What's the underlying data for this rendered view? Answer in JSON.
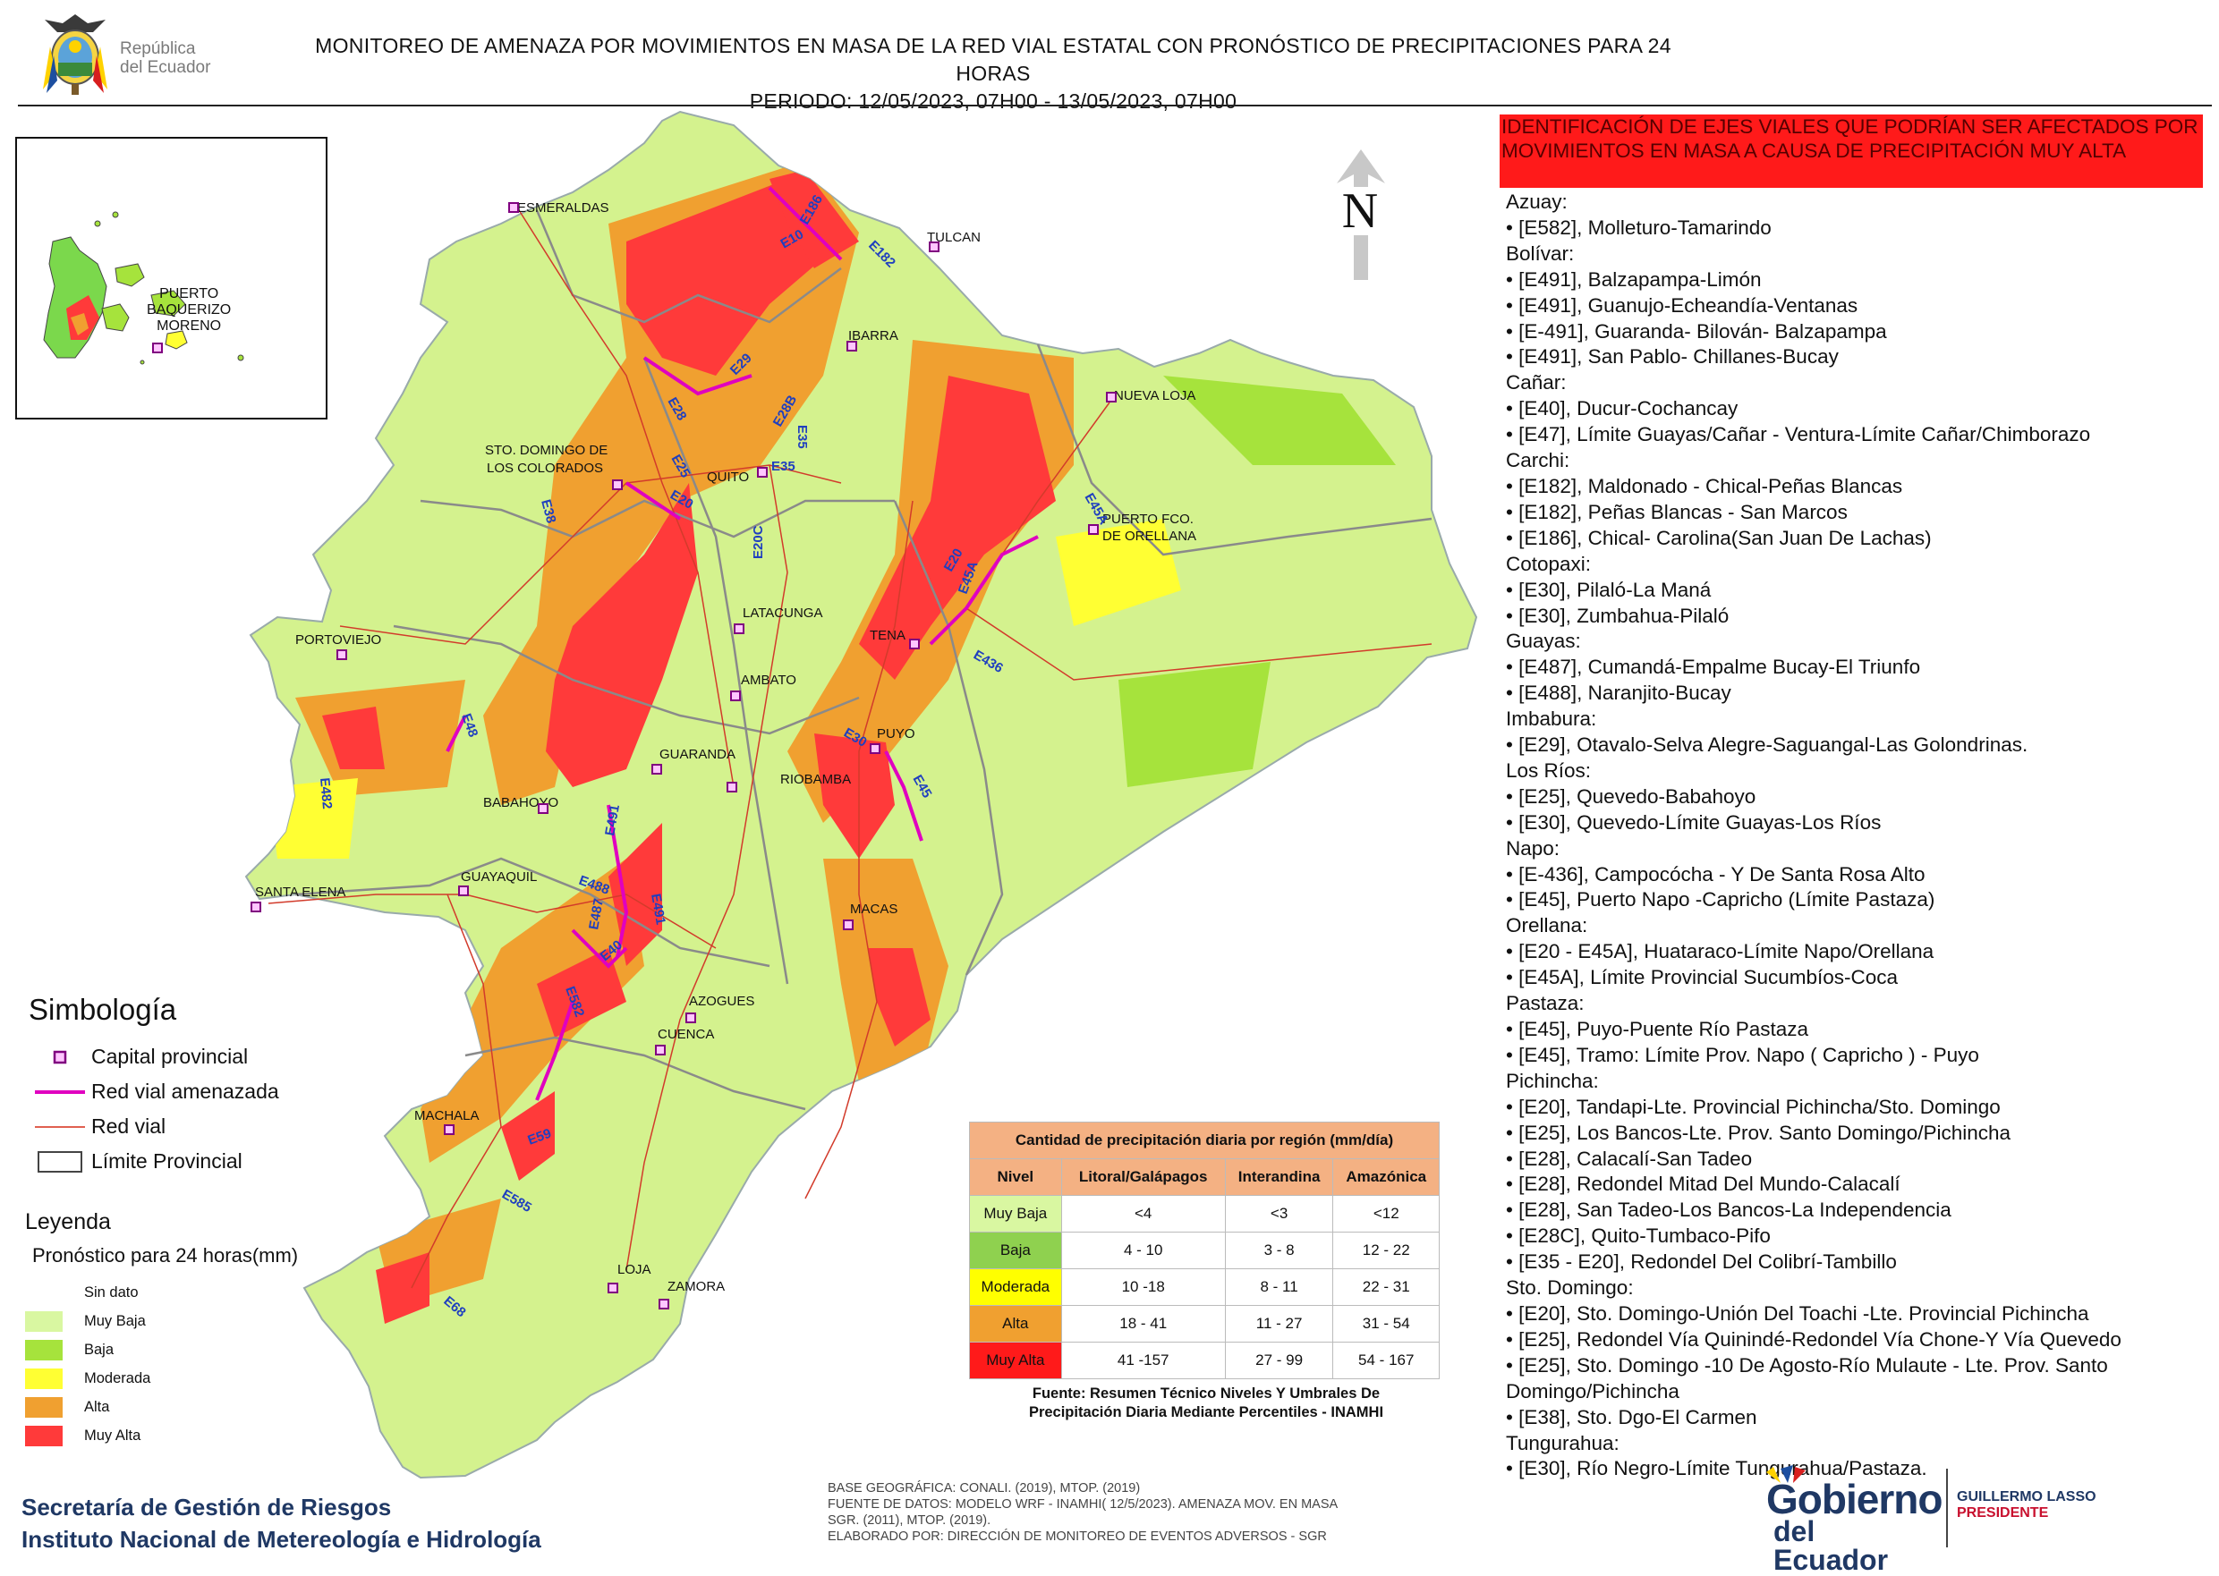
{
  "header": {
    "title_line1": "MONITOREO DE AMENAZA POR MOVIMIENTOS EN MASA DE LA RED VIAL  ESTATAL  CON PRONÓSTICO  DE  PRECIPITACIONES PARA 24 HORAS",
    "title_line2": "PERIODO: 12/05/2023, 07H00 - 13/05/2023, 07H00",
    "logo_text_line1": "República",
    "logo_text_line2": "del Ecuador"
  },
  "north_label": "N",
  "inset": {
    "label_line1": "PUERTO",
    "label_line2": "BAQUERIZO",
    "label_line3": "MORENO"
  },
  "cities": [
    {
      "name": "ESMERALDAS"
    },
    {
      "name": "TULCAN"
    },
    {
      "name": "IBARRA"
    },
    {
      "name": "NUEVA LOJA"
    },
    {
      "name": "STO. DOMINGO DE"
    },
    {
      "name": "LOS COLORADOS"
    },
    {
      "name": "QUITO"
    },
    {
      "name": "PUERTO FCO."
    },
    {
      "name": "DE ORELLANA"
    },
    {
      "name": "PORTOVIEJO"
    },
    {
      "name": "LATACUNGA"
    },
    {
      "name": "TENA"
    },
    {
      "name": "AMBATO"
    },
    {
      "name": "PUYO"
    },
    {
      "name": "GUARANDA"
    },
    {
      "name": "RIOBAMBA"
    },
    {
      "name": "BABAHOYO"
    },
    {
      "name": "SANTA ELENA"
    },
    {
      "name": "GUAYAQUIL"
    },
    {
      "name": "MACAS"
    },
    {
      "name": "AZOGUES"
    },
    {
      "name": "CUENCA"
    },
    {
      "name": "MACHALA"
    },
    {
      "name": "LOJA"
    },
    {
      "name": "ZAMORA"
    }
  ],
  "road_labels": [
    "E10",
    "E186",
    "E182",
    "E29",
    "E28",
    "E35",
    "E28B",
    "E25",
    "E20",
    "E35",
    "E38",
    "E20C",
    "E45A",
    "E20",
    "E45A",
    "E436",
    "E48",
    "E482",
    "E30",
    "E45",
    "E491",
    "E488",
    "E491",
    "E487",
    "E40",
    "E582",
    "E59",
    "E585",
    "E68"
  ],
  "identification": {
    "title": "IDENTIFICACIÓN DE EJES VIALES QUE PODRÍAN SER AFECTADOS POR MOVIMIENTOS EN MASA A CAUSA DE PRECIPITACIÓN MUY ALTA",
    "groups": [
      {
        "province": "Azuay:",
        "roads": [
          "• [E582], Molleturo-Tamarindo"
        ]
      },
      {
        "province": "Bolívar:",
        "roads": [
          "• [E491], Balzapampa-Limón",
          "• [E491], Guanujo-Echeandía-Ventanas",
          "• [E-491], Guaranda- Bilován- Balzapampa",
          "• [E491], San Pablo- Chillanes-Bucay"
        ]
      },
      {
        "province": "Cañar:",
        "roads": [
          "• [E40], Ducur-Cochancay",
          "• [E47], Límite Guayas/Cañar - Ventura-Límite Cañar/Chimborazo"
        ]
      },
      {
        "province": "Carchi:",
        "roads": [
          "• [E182], Maldonado - Chical-Peñas Blancas",
          "• [E182], Peñas Blancas - San Marcos",
          "• [E186], Chical- Carolina(San Juan De Lachas)"
        ]
      },
      {
        "province": "Cotopaxi:",
        "roads": [
          "• [E30], Pilaló-La Maná",
          "• [E30], Zumbahua-Pilaló"
        ]
      },
      {
        "province": "Guayas:",
        "roads": [
          "• [E487], Cumandá-Empalme Bucay-El Triunfo",
          "• [E488], Naranjito-Bucay"
        ]
      },
      {
        "province": "Imbabura:",
        "roads": [
          "• [E29], Otavalo-Selva Alegre-Saguangal-Las Golondrinas."
        ]
      },
      {
        "province": "Los Ríos:",
        "roads": [
          "• [E25], Quevedo-Babahoyo",
          "• [E30], Quevedo-Límite Guayas-Los Ríos"
        ]
      },
      {
        "province": "Napo:",
        "roads": [
          "• [E-436], Campocócha - Y De Santa Rosa Alto",
          "• [E45], Puerto Napo -Capricho (Límite Pastaza)"
        ]
      },
      {
        "province": "Orellana:",
        "roads": [
          "• [E20 - E45A], Huataraco-Límite Napo/Orellana",
          "• [E45A], Límite Provincial Sucumbíos-Coca"
        ]
      },
      {
        "province": "Pastaza:",
        "roads": [
          "• [E45], Puyo-Puente Río Pastaza",
          "• [E45], Tramo: Límite Prov. Napo ( Capricho ) - Puyo"
        ]
      },
      {
        "province": "Pichincha:",
        "roads": [
          "• [E20], Tandapi-Lte. Provincial Pichincha/Sto. Domingo",
          "• [E25], Los Bancos-Lte. Prov. Santo Domingo/Pichincha",
          "• [E28], Calacalí-San Tadeo",
          "• [E28], Redondel Mitad Del Mundo-Calacalí",
          "• [E28], San Tadeo-Los Bancos-La Independencia",
          "• [E28C], Quito-Tumbaco-Pifo",
          "• [E35 - E20], Redondel Del Colibrí-Tambillo"
        ]
      },
      {
        "province": "Sto. Domingo:",
        "roads": [
          "• [E20], Sto. Domingo-Unión Del Toachi -Lte. Provincial Pichincha",
          "• [E25], Redondel Vía Quinindé-Redondel Vía Chone-Y Vía Quevedo",
          "• [E25], Sto. Domingo -10 De Agosto-Río Mulaute - Lte. Prov. Santo\nDomingo/Pichincha",
          "• [E38], Sto. Dgo-El Carmen"
        ]
      },
      {
        "province": "Tungurahua:",
        "roads": [
          "• [E30], Río Negro-Límite Tungurahua/Pastaza."
        ]
      }
    ]
  },
  "simbologia": {
    "title": "Simbología",
    "items": [
      {
        "label": "Capital provincial"
      },
      {
        "label": "Red vial amenazada"
      },
      {
        "label": "Red vial"
      },
      {
        "label": "Límite Provincial"
      }
    ]
  },
  "leyenda": {
    "title": "Leyenda",
    "subtitle": "Pronóstico para 24 horas(mm)",
    "items": [
      {
        "label": "Sin dato",
        "color": "#ffffff"
      },
      {
        "label": "Muy Baja",
        "color": "#d9f7a1"
      },
      {
        "label": "Baja",
        "color": "#a6e33c"
      },
      {
        "label": "Moderada",
        "color": "#ffff33"
      },
      {
        "label": "Alta",
        "color": "#f0a030"
      },
      {
        "label": "Muy Alta",
        "color": "#ff3a3a"
      }
    ]
  },
  "precip_table": {
    "title": "Cantidad de precipitación diaria por región (mm/día)",
    "headers": [
      "Nivel",
      "Litoral/Galápagos",
      "Interandina",
      "Amazónica"
    ],
    "rows": [
      {
        "nivel": "Muy Baja",
        "color": "#d9f7a1",
        "litoral": "<4",
        "interandina": "<3",
        "amazonica": "<12"
      },
      {
        "nivel": "Baja",
        "color": "#8fd14f",
        "litoral": "4 - 10",
        "interandina": "3 - 8",
        "amazonica": "12 - 22"
      },
      {
        "nivel": "Moderada",
        "color": "#ffff00",
        "litoral": "10 -18",
        "interandina": "8 - 11",
        "amazonica": "22 - 31"
      },
      {
        "nivel": "Alta",
        "color": "#f0a030",
        "litoral": "18 - 41",
        "interandina": "11 - 27",
        "amazonica": "31 - 54"
      },
      {
        "nivel": "Muy Alta",
        "color": "#ff1a1a",
        "litoral": "41 -157",
        "interandina": "27 - 99",
        "amazonica": "54 - 167"
      }
    ],
    "caption_line1": "Fuente: Resumen Técnico Niveles Y Umbrales De",
    "caption_line2": "Precipitación Diaria Mediante Percentiles - INAMHI"
  },
  "footer": {
    "sgr_line1": "Secretaría de Gestión de Riesgos",
    "sgr_line2": "Instituto Nacional de Metereología e Hidrología",
    "base_line1": "BASE GEOGRÁFICA: CONALI. (2019), MTOP. (2019)",
    "base_line2": "FUENTE DE DATOS: MODELO WRF - INAMHI( 12/5/2023).  AMENAZA MOV. EN MASA",
    "base_line3": "SGR. (2011), MTOP. (2019).",
    "base_line4": "ELABORADO POR: DIRECCIÓN DE MONITOREO DE EVENTOS ADVERSOS - SGR",
    "gob_line1": "Gobierno",
    "gob_line2": "del Ecuador",
    "pres_line1": "GUILLERMO LASSO",
    "pres_line2": "PRESIDENTE"
  },
  "colors": {
    "muy_baja": "#d9f7a1",
    "baja": "#a6e33c",
    "moderada": "#ffff33",
    "alta": "#f0a030",
    "muy_alta": "#ff3a3a",
    "road_threat": "#e000c0",
    "road": "#d23b2b",
    "boundary": "#8a8a8a",
    "capital": "#cc33cc"
  }
}
